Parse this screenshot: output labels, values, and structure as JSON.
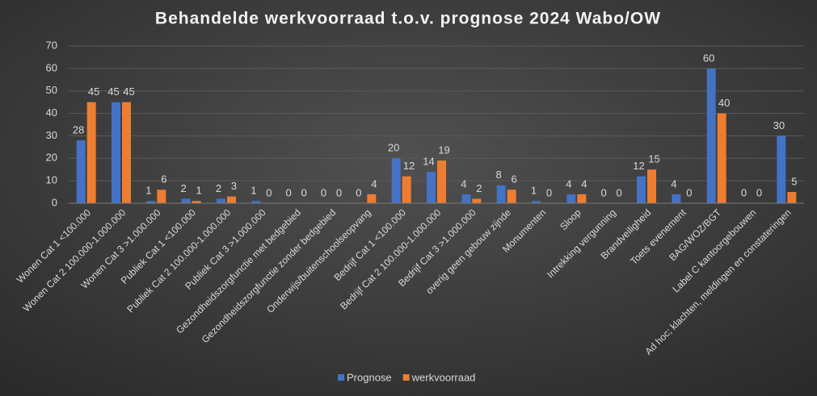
{
  "chart_data": {
    "type": "bar",
    "title": "Behandelde werkvoorraad t.o.v. prognose 2024 Wabo/OW",
    "categories": [
      "Wonen Cat 1 <100.000",
      "Wonen Cat 2 100.000-1.000.000",
      "Wonen Cat 3 >1.000.000",
      "Publiek Cat 1 <100.000",
      "Publiek Cat 2 100.000-1.000.000",
      "Publiek Cat 3 >1.000.000",
      "Gezondheidszorgfunctie met bedgebied",
      "Gezondheidszorgfunctie zonder bedgebied",
      "Onderwijs/buitenschoolseopvang",
      "Bedrijf Cat 1 <100.000",
      "Bedrijf Cat 2 100.000-1.000.000",
      "Bedrijf Cat 3 >1.000.000",
      "overig geen gebouw zijnde",
      "Monumenten",
      "Sloop",
      "Intrekking vergunning",
      "Brandveiligheid",
      "Toets evenement",
      "BAG/WOZ/BGT",
      "Label C kantoorgebouwen",
      "Ad hoc; klachten, meldingen en constateringen"
    ],
    "series": [
      {
        "name": "Prognose",
        "color": "#4472c4",
        "values": [
          28,
          45,
          1,
          2,
          2,
          1,
          0,
          0,
          0,
          20,
          14,
          4,
          8,
          1,
          4,
          0,
          12,
          4,
          60,
          0,
          30
        ]
      },
      {
        "name": "werkvoorraad",
        "color": "#ed7d31",
        "values": [
          45,
          45,
          6,
          1,
          3,
          0,
          0,
          0,
          4,
          12,
          19,
          2,
          6,
          0,
          4,
          0,
          15,
          0,
          40,
          0,
          5
        ]
      }
    ],
    "ylim": [
      0,
      70
    ],
    "yticks": [
      0,
      10,
      20,
      30,
      40,
      50,
      60,
      70
    ],
    "grid": true,
    "legend": "bottom"
  }
}
